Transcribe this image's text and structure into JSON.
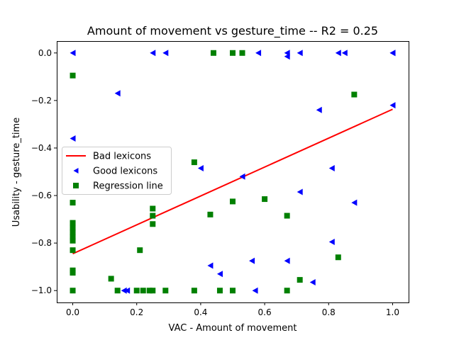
{
  "chart_data": {
    "type": "scatter",
    "title": "Amount of movement  vs  gesture_time -- R2 = 0.25",
    "xlabel": "VAC - Amount of movement",
    "ylabel": "Usability - gesture_time",
    "xlim": [
      -0.05,
      1.05
    ],
    "ylim": [
      -1.05,
      0.05
    ],
    "x_ticks": [
      0.0,
      0.2,
      0.4,
      0.6,
      0.8,
      1.0
    ],
    "x_tick_labels": [
      "0.0",
      "0.2",
      "0.4",
      "0.6",
      "0.8",
      "1.0"
    ],
    "y_ticks": [
      0.0,
      -0.2,
      -0.4,
      -0.6,
      -0.8,
      -1.0
    ],
    "y_tick_labels": [
      "0.0",
      "−0.2",
      "−0.4",
      "−0.6",
      "−0.8",
      "−1.0"
    ],
    "grid": false,
    "legend_position": "center-left",
    "legend": [
      {
        "label": "Bad lexicons",
        "marker": "line",
        "color": "#ff0000"
      },
      {
        "label": "Good lexicons",
        "marker": "triangle-left",
        "color": "#0000ff"
      },
      {
        "label": "Regression line",
        "marker": "square",
        "color": "#008000"
      }
    ],
    "series": [
      {
        "marker": "line",
        "color": "#ff0000",
        "points": [
          [
            0.0,
            -0.845
          ],
          [
            1.0,
            -0.237
          ]
        ]
      },
      {
        "marker": "triangle-left",
        "color": "#0000ff",
        "points": [
          [
            0.0,
            0.0
          ],
          [
            0.0,
            -0.36
          ],
          [
            0.14,
            -0.17
          ],
          [
            0.25,
            0.0
          ],
          [
            0.29,
            0.0
          ],
          [
            0.58,
            0.0
          ],
          [
            0.67,
            0.0
          ],
          [
            0.67,
            -0.015
          ],
          [
            0.71,
            0.0
          ],
          [
            0.83,
            0.0
          ],
          [
            0.85,
            0.0
          ],
          [
            1.0,
            0.0
          ],
          [
            1.0,
            0.0
          ],
          [
            1.0,
            -0.22
          ],
          [
            0.77,
            -0.24
          ],
          [
            0.4,
            -0.485
          ],
          [
            0.53,
            -0.52
          ],
          [
            0.81,
            -0.485
          ],
          [
            0.71,
            -0.585
          ],
          [
            0.88,
            -0.63
          ],
          [
            0.81,
            -0.795
          ],
          [
            0.43,
            -0.895
          ],
          [
            0.46,
            -0.93
          ],
          [
            0.56,
            -0.875
          ],
          [
            0.67,
            -0.875
          ],
          [
            0.75,
            -0.965
          ],
          [
            0.16,
            -1.0
          ],
          [
            0.17,
            -1.0
          ],
          [
            0.57,
            -1.0
          ]
        ]
      },
      {
        "marker": "square",
        "color": "#008000",
        "points": [
          [
            0.0,
            -0.095
          ],
          [
            0.0,
            -0.63
          ],
          [
            0.0,
            -0.715
          ],
          [
            0.0,
            -0.735
          ],
          [
            0.0,
            -0.755
          ],
          [
            0.0,
            -0.775
          ],
          [
            0.0,
            -0.79
          ],
          [
            0.0,
            -0.83
          ],
          [
            0.0,
            -0.915
          ],
          [
            0.0,
            -0.925
          ],
          [
            0.0,
            -1.0
          ],
          [
            0.44,
            0.0
          ],
          [
            0.5,
            0.0
          ],
          [
            0.53,
            0.0
          ],
          [
            0.88,
            -0.175
          ],
          [
            0.38,
            -0.46
          ],
          [
            0.25,
            -0.655
          ],
          [
            0.25,
            -0.685
          ],
          [
            0.25,
            -0.72
          ],
          [
            0.43,
            -0.68
          ],
          [
            0.5,
            -0.625
          ],
          [
            0.6,
            -0.615
          ],
          [
            0.67,
            -0.685
          ],
          [
            0.21,
            -0.83
          ],
          [
            0.83,
            -0.86
          ],
          [
            0.12,
            -0.95
          ],
          [
            0.71,
            -0.955
          ],
          [
            0.14,
            -1.0
          ],
          [
            0.2,
            -1.0
          ],
          [
            0.22,
            -1.0
          ],
          [
            0.24,
            -1.0
          ],
          [
            0.25,
            -1.0
          ],
          [
            0.29,
            -1.0
          ],
          [
            0.38,
            -1.0
          ],
          [
            0.46,
            -1.0
          ],
          [
            0.5,
            -1.0
          ],
          [
            0.67,
            -1.0
          ]
        ]
      }
    ]
  }
}
